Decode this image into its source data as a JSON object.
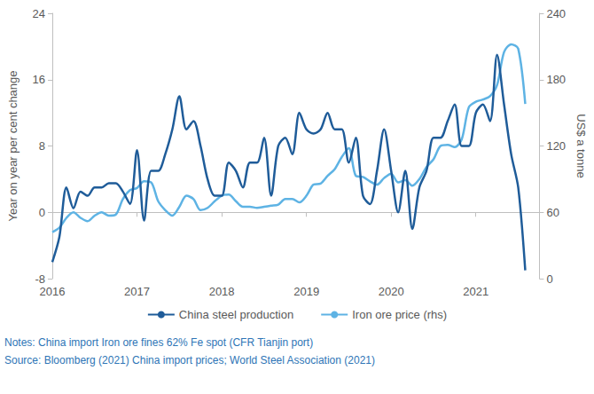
{
  "chart_data": {
    "type": "line",
    "x": [
      2016,
      2016.083,
      2016.167,
      2016.25,
      2016.333,
      2016.417,
      2016.5,
      2016.583,
      2016.667,
      2016.75,
      2016.833,
      2016.917,
      2017,
      2017.083,
      2017.167,
      2017.25,
      2017.333,
      2017.417,
      2017.5,
      2017.583,
      2017.667,
      2017.75,
      2017.833,
      2017.917,
      2018,
      2018.083,
      2018.167,
      2018.25,
      2018.333,
      2018.417,
      2018.5,
      2018.583,
      2018.667,
      2018.75,
      2018.833,
      2018.917,
      2019,
      2019.083,
      2019.167,
      2019.25,
      2019.333,
      2019.417,
      2019.5,
      2019.583,
      2019.667,
      2019.75,
      2019.833,
      2019.917,
      2020,
      2020.083,
      2020.167,
      2020.25,
      2020.333,
      2020.417,
      2020.5,
      2020.583,
      2020.667,
      2020.75,
      2020.833,
      2020.917,
      2021,
      2021.083,
      2021.167,
      2021.25,
      2021.333,
      2021.417,
      2021.5,
      2021.583
    ],
    "series": [
      {
        "name": "China steel production",
        "color": "#1f5c99",
        "values": [
          -6,
          -3,
          3,
          0.5,
          2.5,
          2,
          3,
          3,
          3.5,
          3.5,
          2.5,
          1,
          7.5,
          -1,
          5,
          5,
          7,
          10,
          14,
          10,
          11,
          8,
          4,
          2,
          2,
          6,
          5,
          3,
          6,
          6,
          9,
          2,
          8,
          9,
          7,
          12,
          10,
          9.5,
          10,
          12,
          10,
          10,
          6,
          9,
          2,
          1,
          5,
          10,
          5,
          0,
          5,
          -2,
          3,
          5,
          9,
          9,
          11,
          13,
          8,
          8,
          12,
          13,
          11,
          19,
          13,
          7,
          3,
          -7
        ]
      },
      {
        "name": "Iron ore price (rhs)",
        "color": "#5eb3e4",
        "axis": "y2",
        "values": [
          42,
          46,
          55,
          60,
          55,
          52,
          57,
          60,
          57,
          58,
          72,
          80,
          82,
          88,
          87,
          70,
          62,
          57,
          65,
          75,
          72,
          62,
          64,
          70,
          75,
          76,
          70,
          65,
          65,
          64,
          65,
          66,
          67,
          72,
          72,
          69,
          75,
          85,
          86,
          93,
          99,
          110,
          118,
          93,
          92,
          88,
          85,
          91,
          95,
          87,
          89,
          84,
          90,
          101,
          108,
          120,
          121,
          119,
          126,
          155,
          160,
          162,
          165,
          175,
          205,
          212,
          208,
          158
        ]
      }
    ],
    "xlim": [
      2016,
      2021.75
    ],
    "xticks": [
      2016,
      2017,
      2018,
      2019,
      2020,
      2021
    ],
    "ylim": [
      -8,
      24
    ],
    "yticks": [
      -8,
      0,
      8,
      16,
      24
    ],
    "y2lim": [
      0,
      240
    ],
    "y2ticks": [
      0,
      60,
      120,
      180,
      240
    ],
    "ylabel": "Year on year per cent change",
    "y2label": "US$ a tonne",
    "annotations": [
      "Notes: China import Iron ore fines 62% Fe spot (CFR Tianjin port)",
      "Source: Bloomberg (2021) China import prices; World Steel Association (2021)"
    ],
    "grid": false,
    "legend": "bottom"
  }
}
